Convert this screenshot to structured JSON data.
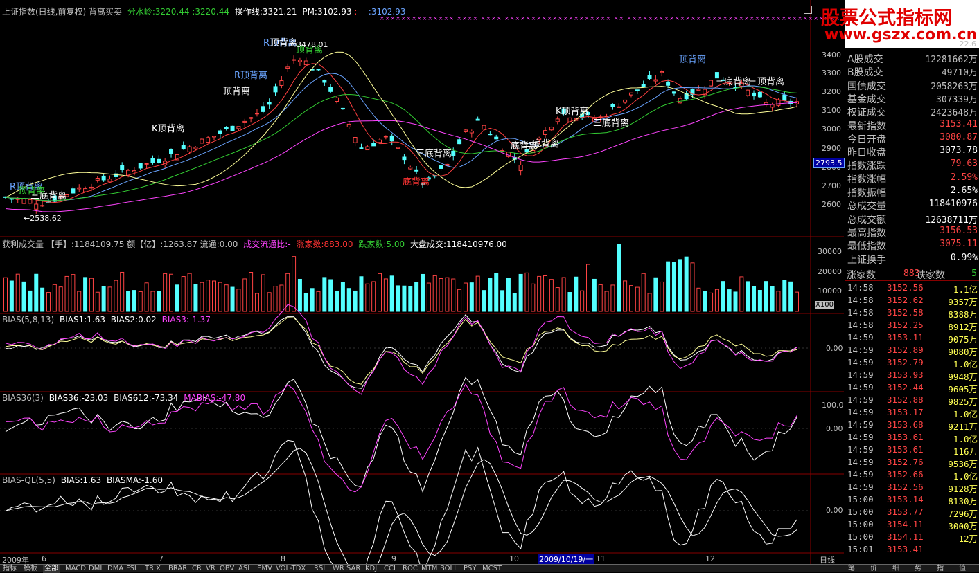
{
  "main_chart": {
    "header": {
      "title": "上证指数(日线,前复权) 背离买卖",
      "fsl_label": "分水岭:3220.44",
      "fsl_value2": ":3220.44",
      "czx_label": "操作线:3321.21",
      "pm_label": "PM:3102.93",
      "arrows": ":- -",
      "last_value": ":3102.93"
    },
    "y_ticks": [
      "3400",
      "3300",
      "3200",
      "3100",
      "3000",
      "2900",
      "2800",
      "2700",
      "2600"
    ],
    "current_price_tag": "2793.5",
    "max_label": "3478.01",
    "min_label": "←2538.62",
    "annotations": [
      {
        "text": "R顶背离",
        "color": "#6aa4ff"
      },
      {
        "text": "R顶背离",
        "color": "#6aa4ff"
      },
      {
        "text": "R顶背离",
        "color": "#6aa4ff"
      },
      {
        "text": "顶背离",
        "color": "#33cc33"
      },
      {
        "text": "顶背离",
        "color": "#33cc33"
      },
      {
        "text": "顶背离",
        "color": "#ffffff"
      },
      {
        "text": "顶背离",
        "color": "#ffffff"
      },
      {
        "text": "K顶背离",
        "color": "#ffffff"
      },
      {
        "text": "三底背离",
        "color": "#ffffff"
      },
      {
        "text": "三底背离",
        "color": "#ffffff"
      },
      {
        "text": "三底背离",
        "color": "#ffffff"
      },
      {
        "text": "三底背离",
        "color": "#ffffff"
      },
      {
        "text": "底背离",
        "color": "#ff3333"
      },
      {
        "text": "顶背离",
        "color": "#6aa4ff"
      },
      {
        "text": "底背离",
        "color": "#ffffff"
      },
      {
        "text": "三底背离",
        "color": "#ffffff"
      },
      {
        "text": "三顶背离",
        "color": "#ffffff"
      },
      {
        "text": "K顶背离",
        "color": "#ffffff"
      }
    ]
  },
  "volume_panel": {
    "header": "获利成交量 【手】:1184109.75 额【亿】:1263.87 流通:0.00",
    "ratio_label": "成交流通比:-",
    "up_label": "涨家数:883.00",
    "down_label": "跌家数:5.00",
    "total_label": "大盘成交:118410976.00",
    "y_ticks": [
      "30000",
      "20000",
      "10000"
    ],
    "unit": "X100"
  },
  "bias_panel": {
    "header": "BIAS(5,8,13)",
    "b1": "BIAS1:1.63",
    "b2": "BIAS2:0.02",
    "b3": "BIAS3:-1.37",
    "y_tick": "0.00"
  },
  "bias36_panel": {
    "header": "BIAS36(3)",
    "b1": "BIAS36:-23.03",
    "b2": "BIAS612:-73.34",
    "b3": "MABIAS:-47.80",
    "y_ticks": [
      "100.0",
      "0.00"
    ]
  },
  "biasql_panel": {
    "header": "BIAS-QL(5,5)",
    "b1": "BIAS:1.63",
    "b2": "BIASMA:-1.60",
    "y_tick": "0.00"
  },
  "time_axis": {
    "year": "2009年",
    "months": [
      "6",
      "7",
      "8",
      "9",
      "10",
      "11",
      "12"
    ],
    "cursor_date": "2009/10/19/一",
    "period": "日线"
  },
  "watermark": {
    "title": "股票公式指标网",
    "url": "www.gszx.com.cn"
  },
  "quote_panel": {
    "top_value": "22.6",
    "rows": [
      {
        "k": "A股成交",
        "v": "12281662万",
        "c": "#c0c0c0"
      },
      {
        "k": "B股成交",
        "v": "49710万",
        "c": "#c0c0c0"
      },
      {
        "k": "国债成交",
        "v": "2058263万",
        "c": "#c0c0c0"
      },
      {
        "k": "基金成交",
        "v": "307339万",
        "c": "#c0c0c0"
      },
      {
        "k": "权证成交",
        "v": "2423648万",
        "c": "#c0c0c0"
      },
      {
        "k": "最新指数",
        "v": "3153.41",
        "c": "#ff4444"
      },
      {
        "k": "今日开盘",
        "v": "3080.87",
        "c": "#ff4444"
      },
      {
        "k": "昨日收盘",
        "v": "3073.78",
        "c": "#ffffff"
      },
      {
        "k": "指数涨跌",
        "v": "79.63",
        "c": "#ff4444"
      },
      {
        "k": "指数涨幅",
        "v": "2.59%",
        "c": "#ff4444"
      },
      {
        "k": "指数振幅",
        "v": "2.65%",
        "c": "#ffffff"
      },
      {
        "k": "总成交量",
        "v": "118410976",
        "c": "#ffffff"
      },
      {
        "k": "总成交额",
        "v": "12638711万",
        "c": "#ffffff"
      },
      {
        "k": "最高指数",
        "v": "3156.53",
        "c": "#ff4444"
      },
      {
        "k": "最低指数",
        "v": "3075.11",
        "c": "#ff4444"
      },
      {
        "k": "上证换手",
        "v": "0.99%",
        "c": "#ffffff"
      }
    ],
    "up_label": "涨家数",
    "up_value": "883",
    "down_label": "跌家数",
    "down_value": "5"
  },
  "ticks": [
    {
      "t": "14:58",
      "p": "3152.56",
      "v": "1.1亿"
    },
    {
      "t": "14:58",
      "p": "3152.62",
      "v": "9357万"
    },
    {
      "t": "14:58",
      "p": "3152.58",
      "v": "8388万"
    },
    {
      "t": "14:58",
      "p": "3152.25",
      "v": "8912万"
    },
    {
      "t": "14:59",
      "p": "3153.11",
      "v": "9075万"
    },
    {
      "t": "14:59",
      "p": "3152.89",
      "v": "9080万"
    },
    {
      "t": "14:59",
      "p": "3152.79",
      "v": "1.0亿"
    },
    {
      "t": "14:59",
      "p": "3153.93",
      "v": "9948万"
    },
    {
      "t": "14:59",
      "p": "3152.44",
      "v": "9605万"
    },
    {
      "t": "14:59",
      "p": "3152.88",
      "v": "9825万"
    },
    {
      "t": "14:59",
      "p": "3153.17",
      "v": "1.0亿"
    },
    {
      "t": "14:59",
      "p": "3153.68",
      "v": "9211万"
    },
    {
      "t": "14:59",
      "p": "3153.61",
      "v": "1.0亿"
    },
    {
      "t": "14:59",
      "p": "3153.61",
      "v": "116万"
    },
    {
      "t": "14:59",
      "p": "3152.76",
      "v": "9536万"
    },
    {
      "t": "14:59",
      "p": "3152.66",
      "v": "1.0亿"
    },
    {
      "t": "14:59",
      "p": "3152.56",
      "v": "9128万"
    },
    {
      "t": "15:00",
      "p": "3153.14",
      "v": "8130万"
    },
    {
      "t": "15:00",
      "p": "3153.77",
      "v": "7296万"
    },
    {
      "t": "15:00",
      "p": "3154.11",
      "v": "3000万"
    },
    {
      "t": "15:00",
      "p": "3154.11",
      "v": "12万"
    },
    {
      "t": "15:01",
      "p": "3153.41",
      "v": ""
    }
  ],
  "bottom_tabs": [
    "指标",
    "模板",
    "全部",
    "MACD",
    "DMI",
    "DMA",
    "FSL",
    "TRIX",
    "BRAR",
    "CR",
    "VR",
    "OBV",
    "ASI",
    "EMV",
    "VOL-TDX",
    "RSI",
    "WR",
    "SAR",
    "KDJ",
    "CCI",
    "ROC",
    "MTM",
    "BOLL",
    "PSY",
    "MCST"
  ],
  "right_tabs": [
    "笔",
    "价",
    "细",
    "势",
    "指",
    "值"
  ],
  "colors": {
    "up": "#ff4444",
    "down": "#54ffff",
    "axis": "#800000",
    "white": "#ffffff"
  }
}
